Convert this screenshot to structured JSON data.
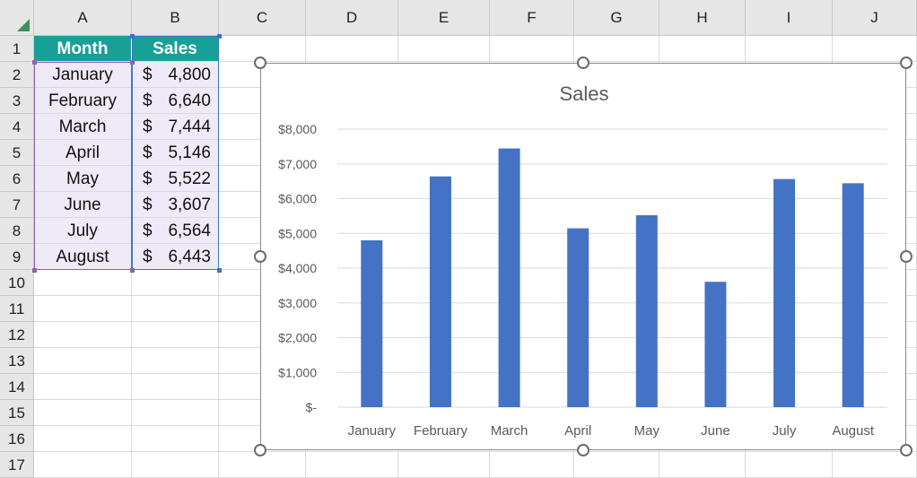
{
  "columns": [
    "A",
    "B",
    "C",
    "D",
    "E",
    "F",
    "G",
    "H",
    "I",
    "J"
  ],
  "rows": [
    "1",
    "2",
    "3",
    "4",
    "5",
    "6",
    "7",
    "8",
    "9",
    "10",
    "11",
    "12",
    "13",
    "14",
    "15",
    "16",
    "17"
  ],
  "table": {
    "headers": {
      "month": "Month",
      "sales": "Sales"
    },
    "currency_symbol": "$",
    "rows": [
      {
        "month": "January",
        "sales": "4,800"
      },
      {
        "month": "February",
        "sales": "6,640"
      },
      {
        "month": "March",
        "sales": "7,444"
      },
      {
        "month": "April",
        "sales": "5,146"
      },
      {
        "month": "May",
        "sales": "5,522"
      },
      {
        "month": "June",
        "sales": "3,607"
      },
      {
        "month": "July",
        "sales": "6,564"
      },
      {
        "month": "August",
        "sales": "6,443"
      }
    ]
  },
  "colors": {
    "header_fill": "#18a097",
    "bar": "#4472c4",
    "selection_month": "#8e5fb5",
    "selection_sales": "#3d73c4"
  },
  "chart_data": {
    "type": "bar",
    "title": "Sales",
    "categories": [
      "January",
      "February",
      "March",
      "April",
      "May",
      "June",
      "July",
      "August"
    ],
    "values": [
      4800,
      6640,
      7444,
      5146,
      5522,
      3607,
      6564,
      6443
    ],
    "ylim": [
      0,
      8000
    ],
    "yticks": [
      0,
      1000,
      2000,
      3000,
      4000,
      5000,
      6000,
      7000,
      8000
    ],
    "ytick_labels": [
      "$-",
      "$1,000",
      "$2,000",
      "$3,000",
      "$4,000",
      "$5,000",
      "$6,000",
      "$7,000",
      "$8,000"
    ],
    "grid": true,
    "legend": "none"
  }
}
